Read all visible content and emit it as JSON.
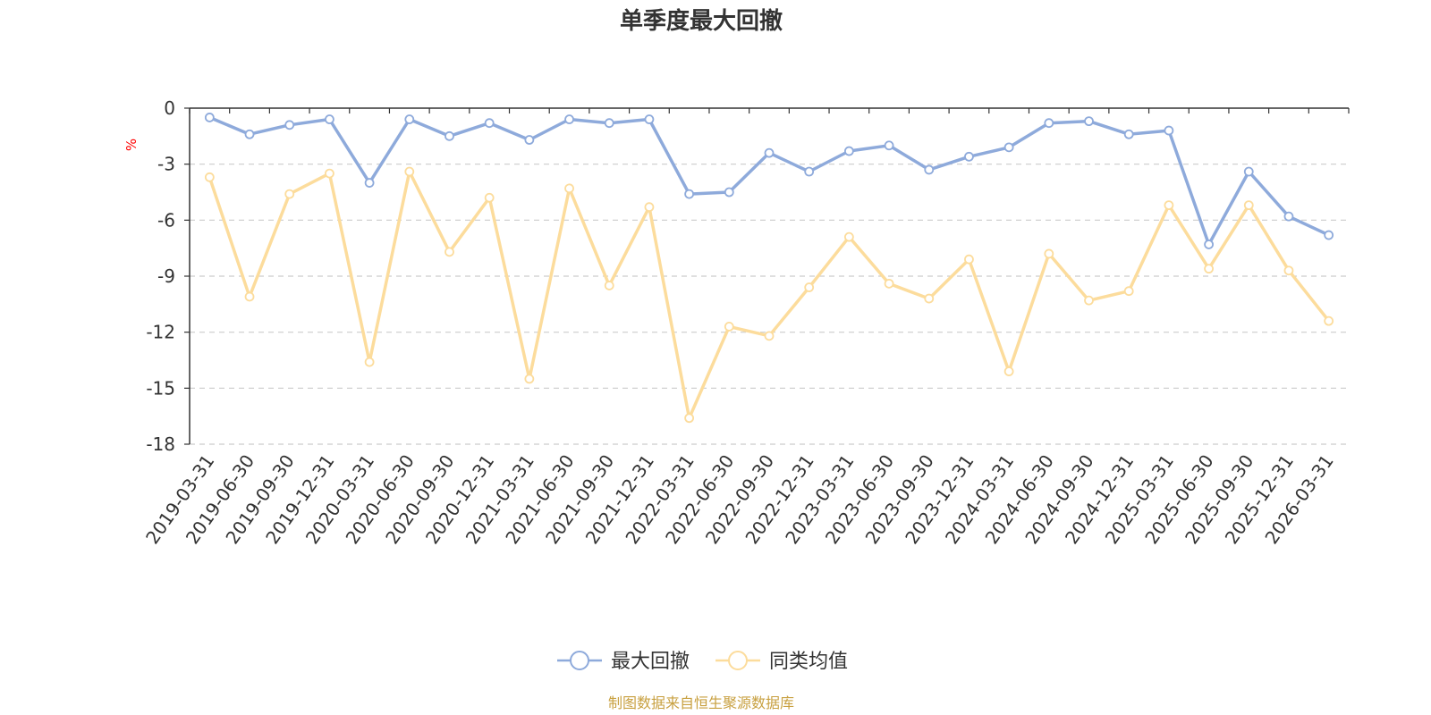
{
  "chart_data": {
    "type": "line",
    "title": "单季度最大回撤",
    "ylabel": "%",
    "ylim": [
      -18,
      0
    ],
    "yticks": [
      0,
      -3,
      -6,
      -9,
      -12,
      -15,
      -18
    ],
    "grid": true,
    "legend_position": "bottom-center",
    "categories": [
      "2019-03-31",
      "2019-06-30",
      "2019-09-30",
      "2019-12-31",
      "2020-03-31",
      "2020-06-30",
      "2020-09-30",
      "2020-12-31",
      "2021-03-31",
      "2021-06-30",
      "2021-09-30",
      "2021-12-31",
      "2022-03-31",
      "2022-06-30",
      "2022-09-30",
      "2022-12-31",
      "2023-03-31",
      "2023-06-30",
      "2023-09-30",
      "2023-12-31",
      "2024-03-31",
      "2024-06-30",
      "2024-09-30",
      "2024-12-31",
      "2025-03-31",
      "2025-06-30",
      "2025-09-30",
      "2025-12-31",
      "2026-03-31"
    ],
    "series": [
      {
        "name": "最大回撤",
        "color": "#8eaadb",
        "values": [
          -0.5,
          -1.4,
          -0.9,
          -0.6,
          -4.0,
          -0.6,
          -1.5,
          -0.8,
          -1.7,
          -0.6,
          -0.8,
          -0.6,
          -4.6,
          -4.5,
          -2.4,
          -3.4,
          -2.3,
          -2.0,
          -3.3,
          -2.6,
          -2.1,
          -0.8,
          -0.7,
          -1.4,
          -1.2,
          -7.3,
          -3.4,
          -5.8,
          -6.8
        ]
      },
      {
        "name": "同类均值",
        "color": "#fcdc9c",
        "values": [
          -3.7,
          -10.1,
          -4.6,
          -3.5,
          -13.6,
          -3.4,
          -7.7,
          -4.8,
          -14.5,
          -4.3,
          -9.5,
          -5.3,
          -16.6,
          -11.7,
          -12.2,
          -9.6,
          -6.9,
          -9.4,
          -10.2,
          -8.1,
          -14.1,
          -7.8,
          -10.3,
          -9.8,
          -5.2,
          -8.6,
          -5.2,
          -8.7,
          -11.4
        ]
      }
    ],
    "source": "制图数据来自恒生聚源数据库",
    "colors": {
      "axis": "#333333",
      "grid": "#cccccc",
      "unit": "#ff0000",
      "source": "#c8a040"
    }
  }
}
